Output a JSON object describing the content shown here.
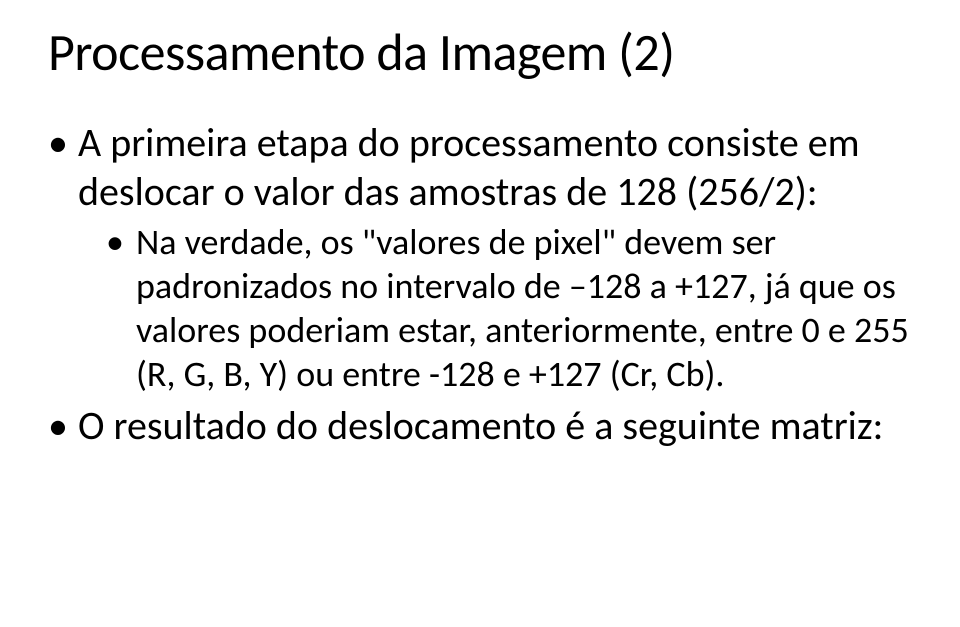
{
  "title": "Processamento da Imagem (2)",
  "bullets": {
    "b1": "A primeira etapa do processamento consiste em deslocar o valor das amostras de 128 (256/2):",
    "b1_sub1": "Na verdade, os \"valores de pixel\" devem ser padronizados no intervalo  de –128 a +127, já que os valores poderiam estar, anteriormente, entre 0 e 255 (R, G, B, Y) ou entre -128 e +127 (Cr, Cb).",
    "b2": "O resultado do deslocamento é a seguinte matriz:"
  }
}
